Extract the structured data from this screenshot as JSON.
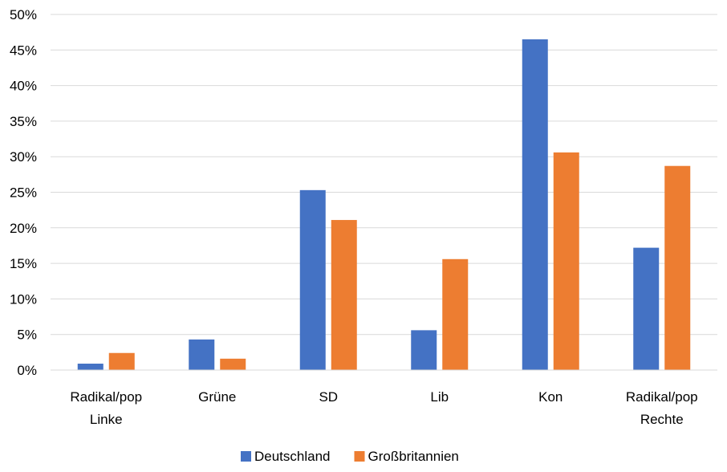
{
  "chart_data": {
    "type": "bar",
    "title": "",
    "xlabel": "",
    "ylabel": "",
    "categories": [
      [
        "Radikal/pop",
        "Linke"
      ],
      [
        "Grüne"
      ],
      [
        "SD"
      ],
      [
        "Lib"
      ],
      [
        "Kon"
      ],
      [
        "Radikal/pop",
        "Rechte"
      ]
    ],
    "series": [
      {
        "name": "Deutschland",
        "color": "#4472C4",
        "values": [
          0.9,
          4.3,
          25.3,
          5.6,
          46.5,
          17.2
        ]
      },
      {
        "name": "Großbritannien",
        "color": "#ED7D31",
        "values": [
          2.4,
          1.6,
          21.1,
          15.6,
          30.6,
          28.7
        ]
      }
    ],
    "ylim": [
      0,
      50
    ],
    "yticks": [
      0,
      5,
      10,
      15,
      20,
      25,
      30,
      35,
      40,
      45,
      50
    ],
    "ytick_labels": [
      "0%",
      "5%",
      "10%",
      "15%",
      "20%",
      "25%",
      "30%",
      "35%",
      "40%",
      "45%",
      "50%"
    ],
    "grid": true,
    "legend_position": "bottom",
    "gridline_color": "#d9d9d9"
  }
}
